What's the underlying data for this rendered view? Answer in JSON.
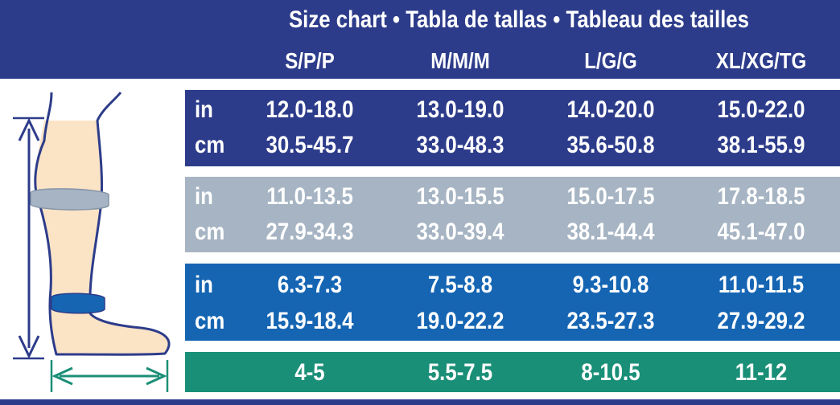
{
  "title": "Size chart • Tabla de tallas • Tableau des tailles",
  "sizes": [
    "S/P/P",
    "M/M/M",
    "L/G/G",
    "XL/XG/TG"
  ],
  "colors": {
    "header": "#2d3c8a",
    "band_calf_max": "#2d3c8a",
    "band_calf_min": "#a6b4c3",
    "band_ankle": "#1565b3",
    "band_shoe": "#1a8f77",
    "leg_fill": "#fbe3c6",
    "outline": "#2d3c8a"
  },
  "rows": [
    {
      "units": [
        "in",
        "cm"
      ],
      "in": [
        "12.0-18.0",
        "13.0-19.0",
        "14.0-20.0",
        "15.0-22.0"
      ],
      "cm": [
        "30.5-45.7",
        "33.0-48.3",
        "35.6-50.8",
        "38.1-55.9"
      ]
    },
    {
      "units": [
        "in",
        "cm"
      ],
      "in": [
        "11.0-13.5",
        "13.0-15.5",
        "15.0-17.5",
        "17.8-18.5"
      ],
      "cm": [
        "27.9-34.3",
        "33.0-39.4",
        "38.1-44.4",
        "45.1-47.0"
      ]
    },
    {
      "units": [
        "in",
        "cm"
      ],
      "in": [
        "6.3-7.3",
        "7.5-8.8",
        "9.3-10.8",
        "11.0-11.5"
      ],
      "cm": [
        "15.9-18.4",
        "19.0-22.2",
        "23.5-27.3",
        "27.9-29.2"
      ]
    },
    {
      "values": [
        "4-5",
        "5.5-7.5",
        "8-10.5",
        "11-12"
      ]
    }
  ]
}
